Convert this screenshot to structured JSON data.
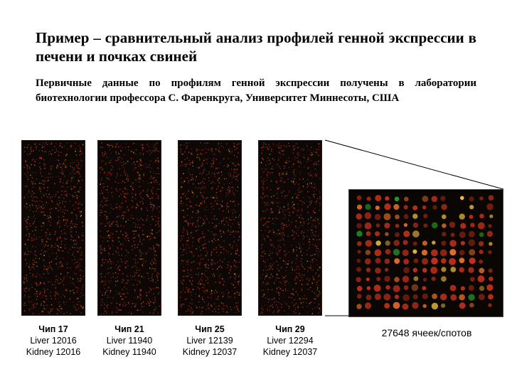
{
  "slide": {
    "title": "Пример – сравнительный анализ профилей генной экспрессии в печени и почках свиней",
    "subtitle": "Первичные данные по профилям генной экспрессии получены в лаборатории биотехнологии профессора С. Фаренкруга, Университет Миннесоты, США",
    "chips": [
      {
        "name": "Чип 17",
        "liver": "Liver 12016",
        "kidney": "Kidney 12016"
      },
      {
        "name": "Чип 21",
        "liver": "Liver 11940",
        "kidney": "Kidney 11940"
      },
      {
        "name": "Чип 25",
        "liver": "Liver 12139",
        "kidney": "Kidney 12037"
      },
      {
        "name": "Чип 29",
        "liver": "Liver 12294",
        "kidney": "Kidney 12037"
      }
    ],
    "spot_count": "27648 ячеек/спотов"
  },
  "colors": {
    "spot_red": "#c0301c",
    "spot_orange": "#e8702a",
    "spot_yellow": "#f0c040",
    "spot_green": "#30c030",
    "array_background": "#0d0806"
  }
}
